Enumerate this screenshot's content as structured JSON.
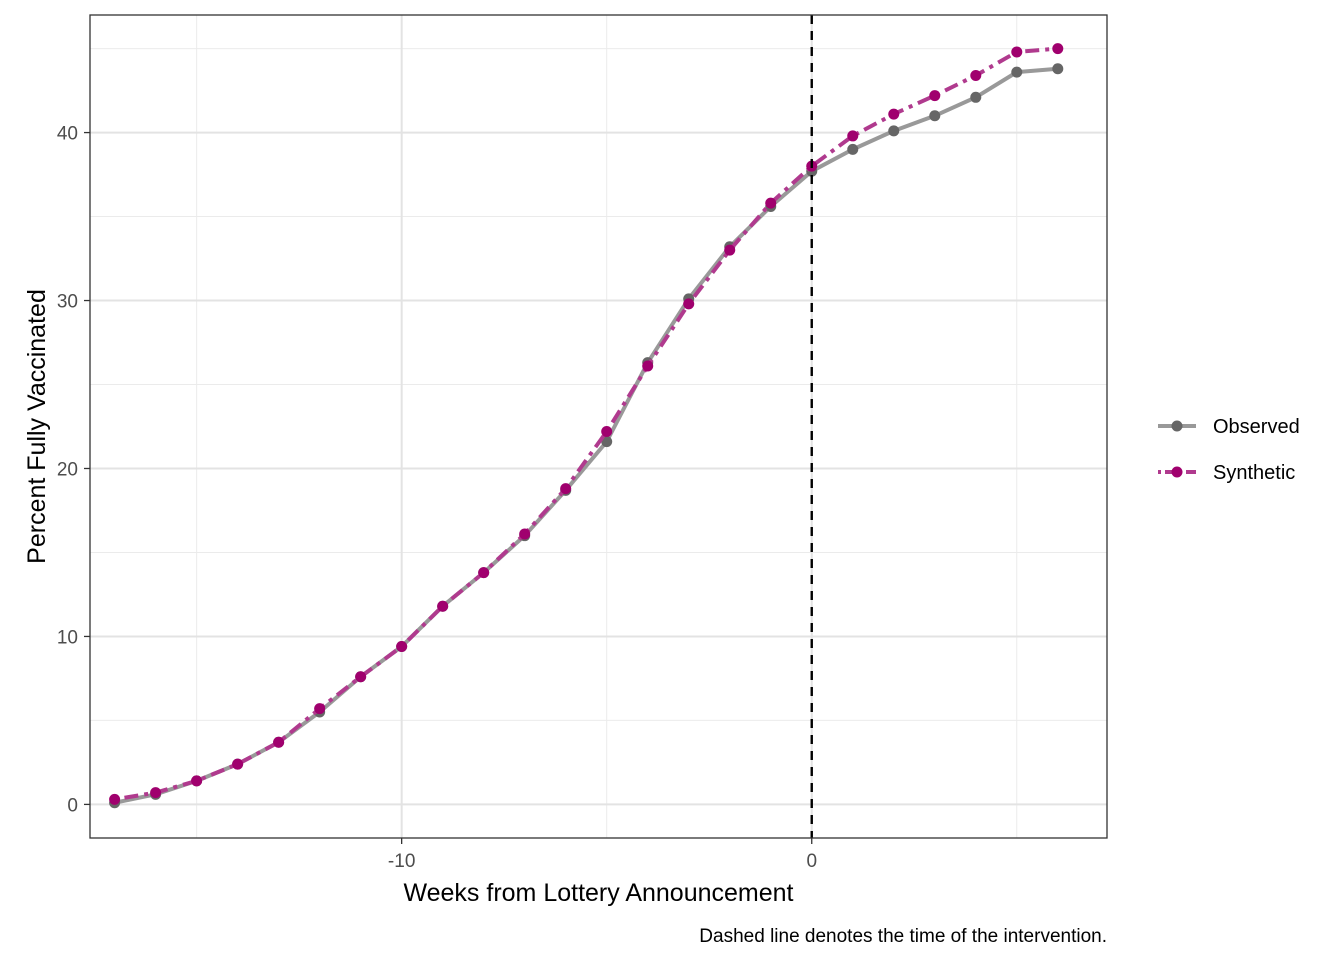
{
  "chart_data": {
    "type": "line",
    "xlabel": "Weeks from Lottery Announcement",
    "ylabel": "Percent Fully Vaccinated",
    "caption": "Dashed line denotes the time of the intervention.",
    "xlim": [
      -17.6,
      7.2
    ],
    "ylim": [
      -2,
      47
    ],
    "x_ticks": [
      -10,
      0
    ],
    "x_tick_labels": [
      "-10",
      "0"
    ],
    "y_ticks": [
      0,
      10,
      20,
      30,
      40
    ],
    "y_tick_labels": [
      "0",
      "10",
      "20",
      "30",
      "40"
    ],
    "grid": true,
    "intervention_x": 0,
    "legend_position": "right",
    "x": [
      -17,
      -16,
      -15,
      -14,
      -13,
      -12,
      -11,
      -10,
      -9,
      -8,
      -7,
      -6,
      -5,
      -4,
      -3,
      -2,
      -1,
      0,
      1,
      2,
      3,
      4,
      5,
      6
    ],
    "series": [
      {
        "name": "Observed",
        "color": "#999999",
        "point_color": "#666666",
        "style": "solid",
        "values": [
          0.1,
          0.6,
          1.4,
          2.4,
          3.7,
          5.5,
          7.6,
          9.4,
          11.8,
          13.8,
          16.0,
          18.7,
          21.6,
          26.3,
          30.1,
          33.2,
          35.6,
          37.7,
          39.0,
          40.1,
          41.0,
          42.1,
          43.6,
          43.8
        ]
      },
      {
        "name": "Synthetic",
        "color": "#b03a8e",
        "point_color": "#a0006e",
        "style": "dotdash",
        "values": [
          0.3,
          0.7,
          1.4,
          2.4,
          3.7,
          5.7,
          7.6,
          9.4,
          11.8,
          13.8,
          16.1,
          18.8,
          22.2,
          26.1,
          29.8,
          33.0,
          35.8,
          38.0,
          39.8,
          41.1,
          42.2,
          43.4,
          44.8,
          45.0
        ]
      }
    ]
  }
}
